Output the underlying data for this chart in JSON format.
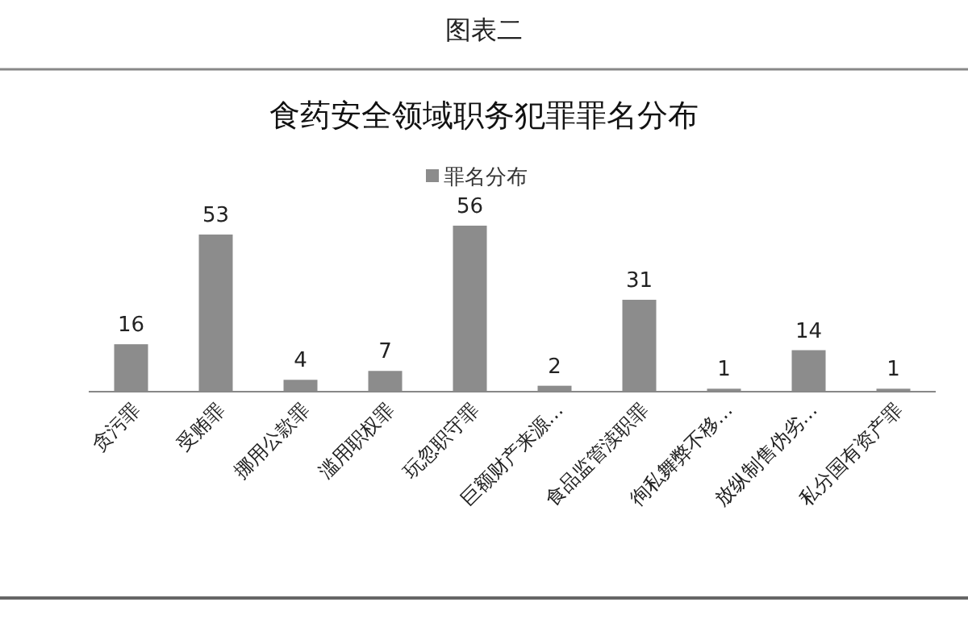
{
  "chart_data": {
    "type": "bar",
    "title": "食药安全领域职务犯罪罪名分布",
    "annotations": [
      "图表二"
    ],
    "categories": [
      "贪污罪",
      "受贿罪",
      "挪用公款罪",
      "滥用职权罪",
      "玩忽职守罪",
      "巨额财产来源…",
      "食品监管渎职罪",
      "徇私舞弊不移…",
      "放纵制售伪劣…",
      "私分国有资产罪"
    ],
    "series": [
      {
        "name": "罪名分布",
        "color": "#8c8c8c",
        "values": [
          16,
          53,
          4,
          7,
          56,
          2,
          31,
          1,
          14,
          1
        ]
      }
    ],
    "data_labels": true,
    "legend": "top",
    "grid": false
  }
}
